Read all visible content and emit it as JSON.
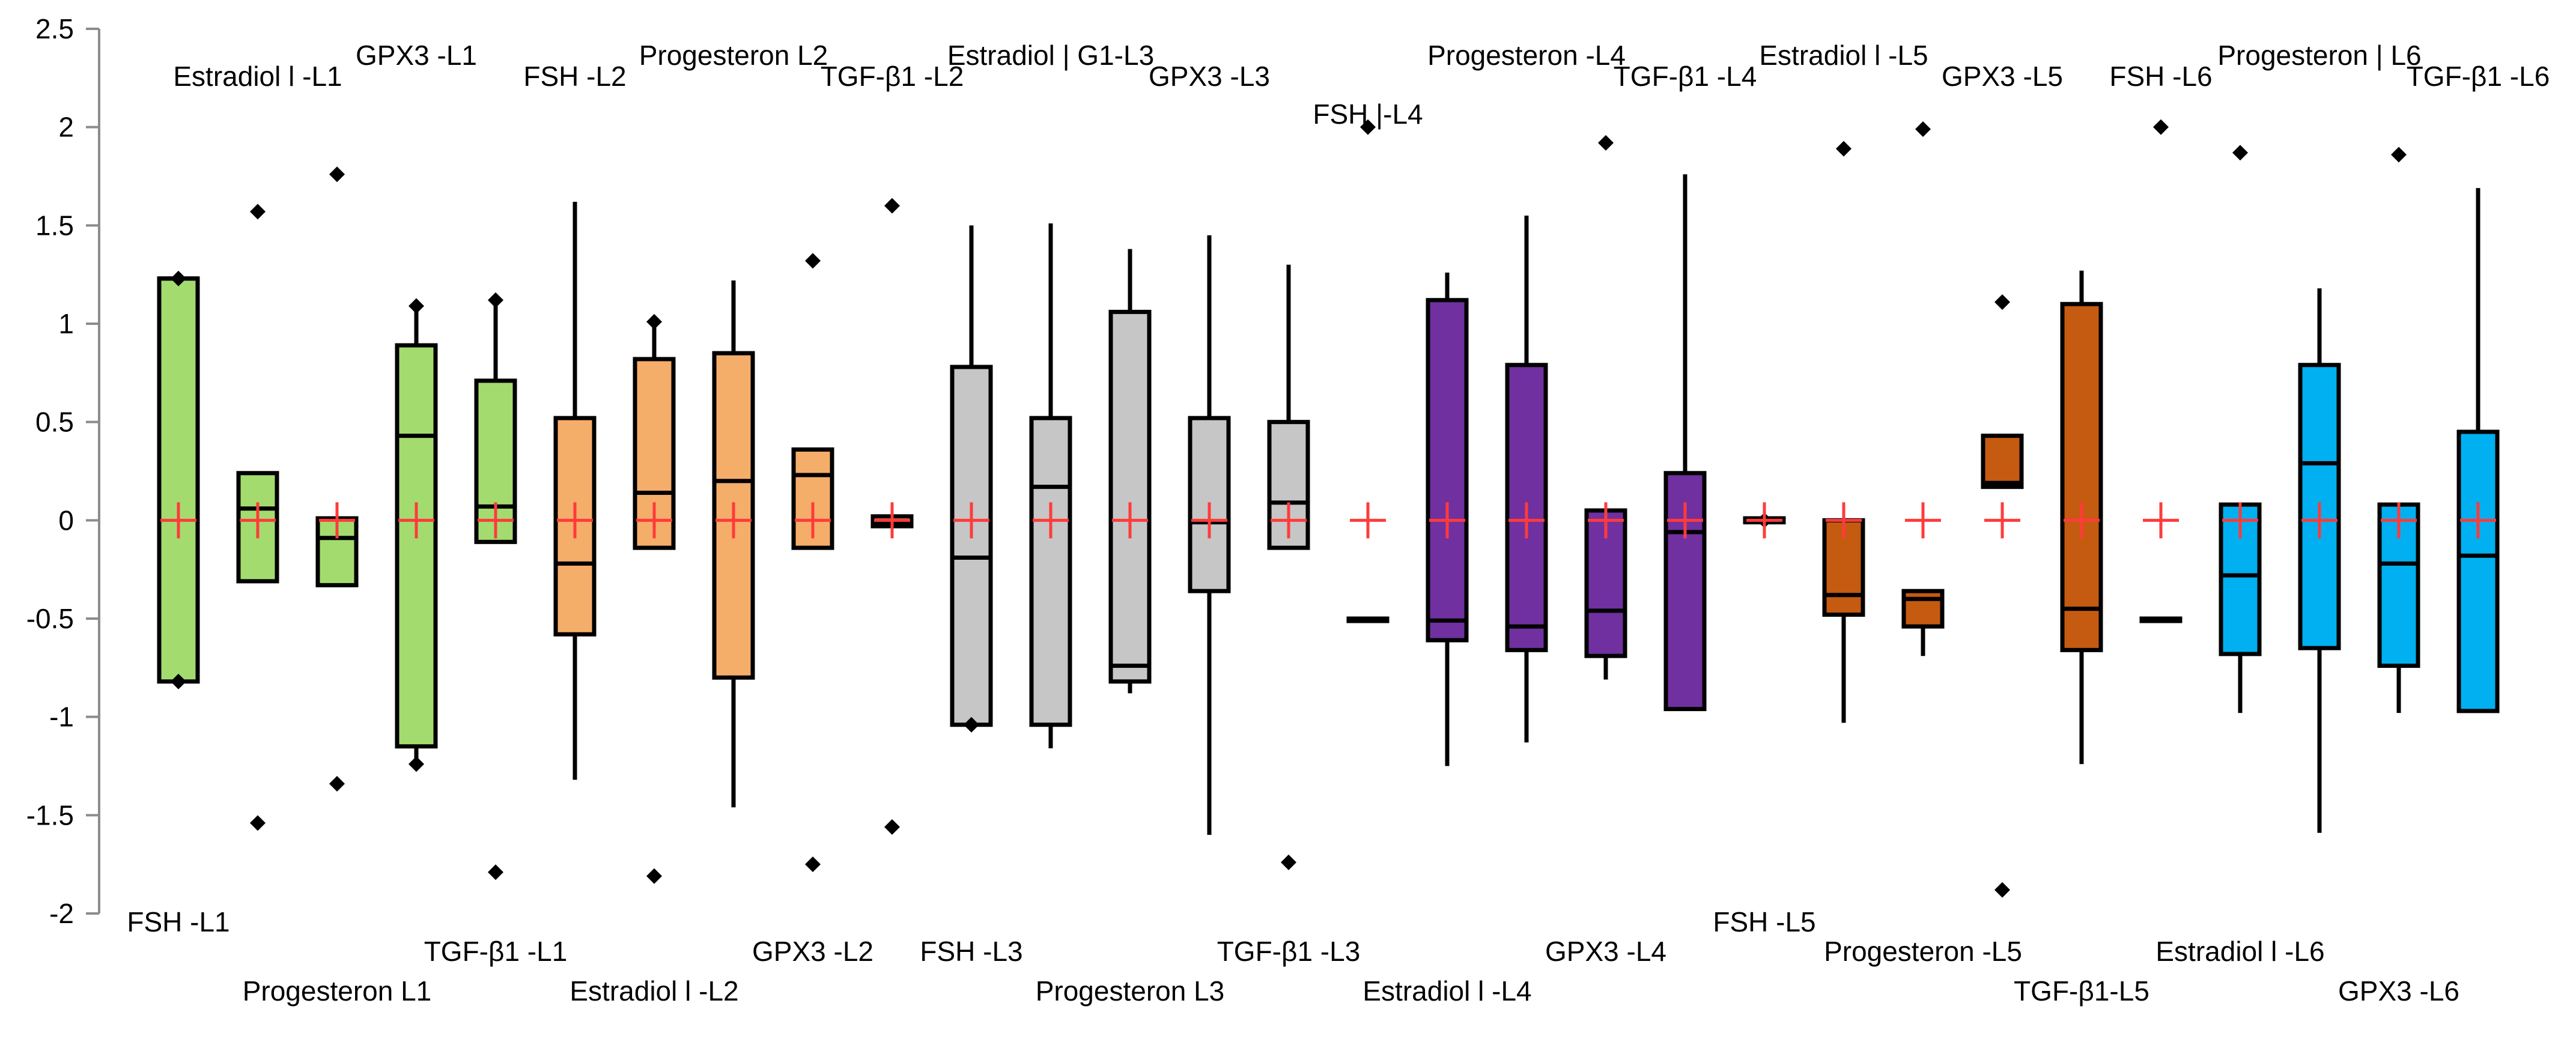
{
  "chart_data": {
    "type": "box",
    "title": "",
    "xlabel": "",
    "ylabel": "",
    "ylim": [
      -2,
      2.5
    ],
    "y_ticks": [
      2.5,
      2,
      1.5,
      1,
      0.5,
      0,
      -0.5,
      -1,
      -1.5,
      -2
    ],
    "y_tick_labels": [
      "2.5",
      "2",
      "1.5",
      "1",
      "0.5",
      "0",
      "-0.5",
      "-1",
      "-1.5",
      "-2"
    ],
    "grid": false,
    "mean_marker_color": "#ff3b3b",
    "groups": [
      {
        "name": "L1",
        "color": "#a4db6f"
      },
      {
        "name": "L2",
        "color": "#f5ad6a"
      },
      {
        "name": "L3",
        "color": "#c6c6c6"
      },
      {
        "name": "L4",
        "color": "#7030a0"
      },
      {
        "name": "L5",
        "color": "#c55a11"
      },
      {
        "name": "L6",
        "color": "#00b0f0"
      }
    ],
    "boxes": [
      {
        "label": "FSH -L1",
        "group": 0,
        "label_pos": "bottom",
        "label_row": 0,
        "q1": -0.82,
        "median": 1.23,
        "q3": 1.23,
        "whisker_low": -0.82,
        "whisker_high": 1.23,
        "outliers": [
          1.23,
          -0.82
        ],
        "mean": 0
      },
      {
        "label": "Estradiol l -L1",
        "group": 0,
        "label_pos": "top",
        "label_row": 1,
        "q1": -0.31,
        "median": 0.06,
        "q3": 0.24,
        "whisker_low": -0.31,
        "whisker_high": 0.24,
        "outliers": [
          1.57,
          -1.54
        ],
        "mean": 0
      },
      {
        "label": "Progesteron L1",
        "group": 0,
        "label_pos": "bottom",
        "label_row": 2,
        "q1": -0.33,
        "median": -0.09,
        "q3": 0.01,
        "whisker_low": -0.33,
        "whisker_high": 0.01,
        "outliers": [
          1.76,
          -1.34
        ],
        "mean": 0
      },
      {
        "label": "GPX3 -L1",
        "group": 0,
        "label_pos": "top",
        "label_row": 0,
        "q1": -1.15,
        "median": 0.43,
        "q3": 0.89,
        "whisker_low": -1.24,
        "whisker_high": 1.09,
        "outliers": [
          1.09,
          -1.24
        ],
        "mean": 0
      },
      {
        "label": "TGF-β1 -L1",
        "group": 0,
        "label_pos": "bottom",
        "label_row": 1,
        "q1": -0.11,
        "median": 0.07,
        "q3": 0.71,
        "whisker_low": -0.11,
        "whisker_high": 1.12,
        "outliers": [
          1.12,
          -1.79
        ],
        "mean": 0
      },
      {
        "label": "FSH -L2",
        "group": 1,
        "label_pos": "top",
        "label_row": 1,
        "q1": -0.58,
        "median": -0.22,
        "q3": 0.52,
        "whisker_low": -1.32,
        "whisker_high": 1.62,
        "outliers": [],
        "mean": 0
      },
      {
        "label": "Estradiol l -L2",
        "group": 1,
        "label_pos": "bottom",
        "label_row": 2,
        "q1": -0.14,
        "median": 0.14,
        "q3": 0.82,
        "whisker_low": -0.14,
        "whisker_high": 1.01,
        "outliers": [
          1.01,
          -1.81
        ],
        "mean": 0
      },
      {
        "label": "Progesteron L2",
        "group": 1,
        "label_pos": "top",
        "label_row": 0,
        "q1": -0.8,
        "median": 0.2,
        "q3": 0.85,
        "whisker_low": -1.46,
        "whisker_high": 1.22,
        "outliers": [],
        "mean": 0
      },
      {
        "label": "GPX3 -L2",
        "group": 1,
        "label_pos": "bottom",
        "label_row": 1,
        "q1": -0.14,
        "median": 0.23,
        "q3": 0.36,
        "whisker_low": -0.14,
        "whisker_high": 0.36,
        "outliers": [
          1.32,
          -1.75
        ],
        "mean": 0
      },
      {
        "label": "TGF-β1 -L2",
        "group": 1,
        "label_pos": "top",
        "label_row": 1,
        "q1": -0.03,
        "median": -0.01,
        "q3": 0.02,
        "whisker_low": -0.03,
        "whisker_high": 0.02,
        "outliers": [
          1.6,
          -1.56
        ],
        "mean": 0
      },
      {
        "label": "FSH -L3",
        "group": 2,
        "label_pos": "bottom",
        "label_row": 1,
        "q1": -1.04,
        "median": -0.19,
        "q3": 0.78,
        "whisker_low": -1.04,
        "whisker_high": 1.5,
        "outliers": [
          -1.04
        ],
        "mean": 0
      },
      {
        "label": "Estradiol  | G1-L3",
        "group": 2,
        "label_pos": "top",
        "label_row": 0,
        "q1": -1.04,
        "median": 0.17,
        "q3": 0.52,
        "whisker_low": -1.16,
        "whisker_high": 1.51,
        "outliers": [],
        "mean": 0
      },
      {
        "label": "Progesteron L3",
        "group": 2,
        "label_pos": "bottom",
        "label_row": 2,
        "q1": -0.82,
        "median": -0.74,
        "q3": 1.06,
        "whisker_low": -0.88,
        "whisker_high": 1.38,
        "outliers": [],
        "mean": 0
      },
      {
        "label": "GPX3 -L3",
        "group": 2,
        "label_pos": "top",
        "label_row": 1,
        "q1": -0.36,
        "median": -0.01,
        "q3": 0.52,
        "whisker_low": -1.6,
        "whisker_high": 1.45,
        "outliers": [],
        "mean": 0
      },
      {
        "label": "TGF-β1 -L3",
        "group": 2,
        "label_pos": "bottom",
        "label_row": 1,
        "q1": -0.14,
        "median": 0.09,
        "q3": 0.5,
        "whisker_low": -0.14,
        "whisker_high": 1.3,
        "outliers": [
          -1.74
        ],
        "mean": 0
      },
      {
        "label": "FSH |-L4",
        "group": 3,
        "label_pos": "top",
        "label_row": 2,
        "q1": -0.5,
        "median": -0.5,
        "q3": -0.5,
        "whisker_low": -0.5,
        "whisker_high": -0.5,
        "outliers": [
          2.0
        ],
        "mean": 0
      },
      {
        "label": "Estradiol l -L4",
        "group": 3,
        "label_pos": "bottom",
        "label_row": 2,
        "q1": -0.61,
        "median": -0.51,
        "q3": 1.12,
        "whisker_low": -1.25,
        "whisker_high": 1.26,
        "outliers": [],
        "mean": 0
      },
      {
        "label": "Progesteron -L4",
        "group": 3,
        "label_pos": "top",
        "label_row": 0,
        "q1": -0.66,
        "median": -0.54,
        "q3": 0.79,
        "whisker_low": -1.13,
        "whisker_high": 1.55,
        "outliers": [],
        "mean": 0
      },
      {
        "label": "GPX3 -L4",
        "group": 3,
        "label_pos": "bottom",
        "label_row": 1,
        "q1": -0.69,
        "median": -0.46,
        "q3": 0.05,
        "whisker_low": -0.81,
        "whisker_high": 0.05,
        "outliers": [
          1.92
        ],
        "mean": 0
      },
      {
        "label": "TGF-β1 -L4",
        "group": 3,
        "label_pos": "top",
        "label_row": 1,
        "q1": -0.96,
        "median": -0.06,
        "q3": 0.24,
        "whisker_low": -0.96,
        "whisker_high": 1.76,
        "outliers": [],
        "mean": 0
      },
      {
        "label": "FSH -L5",
        "group": 4,
        "label_pos": "bottom",
        "label_row": 0,
        "q1": -0.01,
        "median": 0.0,
        "q3": 0.01,
        "whisker_low": -0.01,
        "whisker_high": 0.01,
        "outliers": [
          0.0
        ],
        "mean": 0
      },
      {
        "label": "Estradiol l -L5",
        "group": 4,
        "label_pos": "top",
        "label_row": 0,
        "q1": -0.48,
        "median": -0.38,
        "q3": 0.0,
        "whisker_low": -1.03,
        "whisker_high": 0.0,
        "outliers": [
          1.89
        ],
        "mean": 0
      },
      {
        "label": "Progesteron -L5",
        "group": 4,
        "label_pos": "bottom",
        "label_row": 1,
        "q1": -0.54,
        "median": -0.4,
        "q3": -0.36,
        "whisker_low": -0.69,
        "whisker_high": -0.36,
        "outliers": [
          1.99
        ],
        "mean": 0
      },
      {
        "label": "GPX3 -L5",
        "group": 4,
        "label_pos": "top",
        "label_row": 1,
        "q1": 0.17,
        "median": 0.19,
        "q3": 0.43,
        "whisker_low": 0.17,
        "whisker_high": 0.43,
        "outliers": [
          1.11,
          -1.88
        ],
        "mean": 0
      },
      {
        "label": "TGF-β1-L5",
        "group": 4,
        "label_pos": "bottom",
        "label_row": 2,
        "q1": -0.66,
        "median": -0.45,
        "q3": 1.1,
        "whisker_low": -1.24,
        "whisker_high": 1.27,
        "outliers": [],
        "mean": 0
      },
      {
        "label": "FSH -L6",
        "group": 5,
        "label_pos": "top",
        "label_row": 1,
        "q1": -0.5,
        "median": -0.5,
        "q3": -0.5,
        "whisker_low": -0.5,
        "whisker_high": -0.5,
        "outliers": [
          2.0
        ],
        "mean": 0
      },
      {
        "label": "Estradiol l -L6",
        "group": 5,
        "label_pos": "bottom",
        "label_row": 1,
        "q1": -0.68,
        "median": -0.28,
        "q3": 0.08,
        "whisker_low": -0.98,
        "whisker_high": 0.08,
        "outliers": [
          1.87
        ],
        "mean": 0
      },
      {
        "label": "Progesteron | L6",
        "group": 5,
        "label_pos": "top",
        "label_row": 0,
        "q1": -0.65,
        "median": 0.29,
        "q3": 0.79,
        "whisker_low": -1.59,
        "whisker_high": 1.18,
        "outliers": [],
        "mean": 0
      },
      {
        "label": "GPX3 -L6",
        "group": 5,
        "label_pos": "bottom",
        "label_row": 2,
        "q1": -0.74,
        "median": -0.22,
        "q3": 0.08,
        "whisker_low": -0.98,
        "whisker_high": 0.08,
        "outliers": [
          1.86
        ],
        "mean": 0
      },
      {
        "label": "TGF-β1 -L6",
        "group": 5,
        "label_pos": "top",
        "label_row": 1,
        "q1": -0.97,
        "median": -0.18,
        "q3": 0.45,
        "whisker_low": -0.97,
        "whisker_high": 1.69,
        "outliers": [],
        "mean": 0
      }
    ]
  }
}
